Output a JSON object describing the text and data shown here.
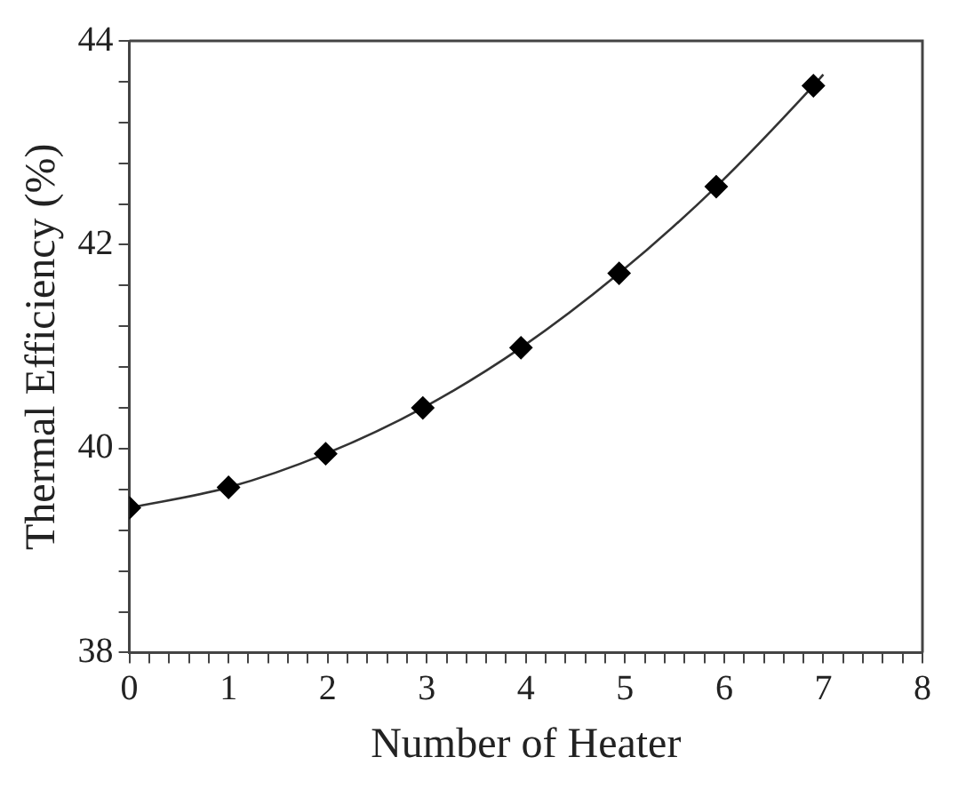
{
  "chart_data": {
    "type": "scatter",
    "xlabel": "Number of Heater",
    "ylabel": "Thermal Efficiency (%)",
    "xlim": [
      0,
      8
    ],
    "ylim": [
      38,
      44
    ],
    "xticks": [
      0,
      {
        "value": 0.2,
        "label": null
      },
      {
        "value": 0.4,
        "label": null
      },
      {
        "value": 0.6,
        "label": null
      },
      {
        "value": 0.8,
        "label": null
      },
      1,
      {
        "value": 1.2,
        "label": null
      },
      {
        "value": 1.4,
        "label": null
      },
      {
        "value": 1.6,
        "label": null
      },
      {
        "value": 1.8,
        "label": null
      },
      2,
      {
        "value": 2.2,
        "label": null
      },
      {
        "value": 2.4,
        "label": null
      },
      {
        "value": 2.6,
        "label": null
      },
      {
        "value": 2.8,
        "label": null
      },
      3,
      {
        "value": 3.2,
        "label": null
      },
      {
        "value": 3.4,
        "label": null
      },
      {
        "value": 3.6,
        "label": null
      },
      {
        "value": 3.8,
        "label": null
      },
      4,
      {
        "value": 4.2,
        "label": null
      },
      {
        "value": 4.4,
        "label": null
      },
      {
        "value": 4.6,
        "label": null
      },
      {
        "value": 4.8,
        "label": null
      },
      5,
      {
        "value": 5.2,
        "label": null
      },
      {
        "value": 5.4,
        "label": null
      },
      {
        "value": 5.6,
        "label": null
      },
      {
        "value": 5.8,
        "label": null
      },
      6,
      {
        "value": 6.2,
        "label": null
      },
      {
        "value": 6.4,
        "label": null
      },
      {
        "value": 6.6,
        "label": null
      },
      {
        "value": 6.8,
        "label": null
      },
      7,
      {
        "value": 7.2,
        "label": null
      },
      {
        "value": 7.4,
        "label": null
      },
      {
        "value": 7.6,
        "label": null
      },
      {
        "value": 7.8,
        "label": null
      },
      8
    ],
    "yticks": [
      38,
      {
        "value": 38.4,
        "label": null
      },
      {
        "value": 38.8,
        "label": null
      },
      {
        "value": 39.2,
        "label": null
      },
      {
        "value": 39.6,
        "label": null
      },
      40,
      {
        "value": 40.4,
        "label": null
      },
      {
        "value": 40.8,
        "label": null
      },
      {
        "value": 41.2,
        "label": null
      },
      {
        "value": 41.6,
        "label": null
      },
      42,
      {
        "value": 42.4,
        "label": null
      },
      {
        "value": 42.8,
        "label": null
      },
      {
        "value": 43.2,
        "label": null
      },
      {
        "value": 43.6,
        "label": null
      },
      44
    ],
    "grid": false,
    "legend": false,
    "series": [
      {
        "marker": "diamond",
        "color": "#000000",
        "x": [
          0,
          1,
          1.98,
          2.96,
          3.95,
          4.94,
          5.92,
          6.9
        ],
        "values": [
          39.42,
          39.62,
          39.95,
          40.4,
          40.99,
          41.72,
          42.57,
          43.56
        ]
      },
      {
        "type": "line",
        "marker": "none",
        "line_style": "solid",
        "color": "#333333",
        "x": [
          0,
          1,
          1.98,
          2.96,
          3.95,
          4.94,
          5.92,
          6.9,
          7.0
        ],
        "values": [
          39.42,
          39.62,
          39.95,
          40.4,
          40.99,
          41.72,
          42.57,
          43.56,
          43.67
        ]
      }
    ]
  }
}
